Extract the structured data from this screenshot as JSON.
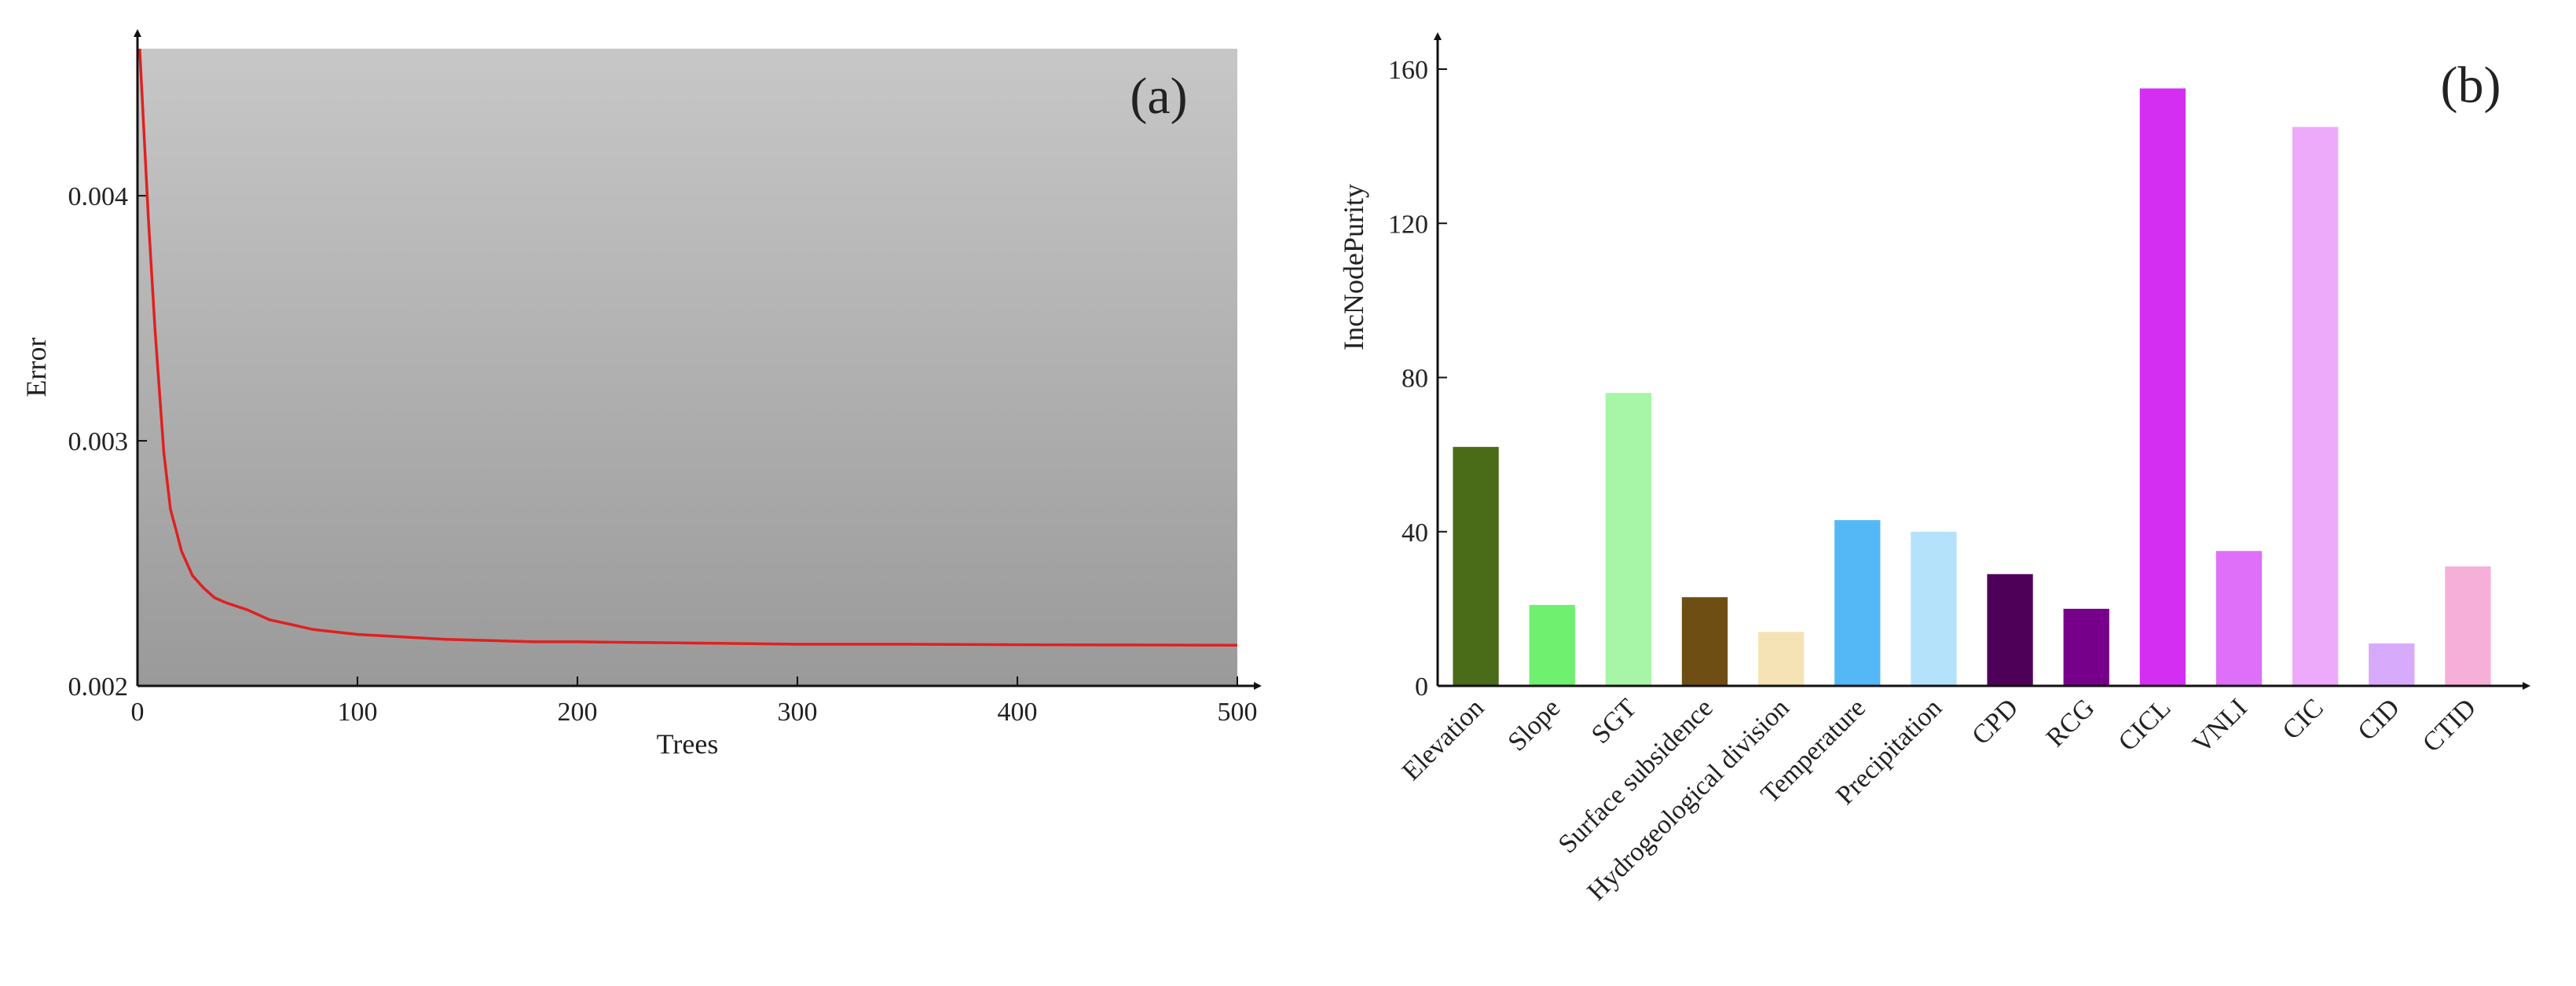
{
  "chart_data": [
    {
      "panel": "(a)",
      "type": "line",
      "xlabel": "Trees",
      "ylabel": "Error",
      "xlim": [
        0,
        500
      ],
      "ylim": [
        0.002,
        0.0046
      ],
      "xticks": [
        0,
        100,
        200,
        300,
        400,
        500
      ],
      "xtick_labels": [
        "0",
        "100",
        "200",
        "300",
        "400",
        "500"
      ],
      "yticks": [
        0.002,
        0.003,
        0.004
      ],
      "ytick_labels": [
        "0.002",
        "0.003",
        "0.004"
      ],
      "grid": false,
      "background": "gray gradient",
      "line_color": "#e02020",
      "series": [
        {
          "x": [
            1,
            3,
            5,
            8,
            10,
            12,
            15,
            18,
            20,
            25,
            30,
            35,
            40,
            50,
            60,
            70,
            80,
            90,
            100,
            120,
            140,
            160,
            180,
            200,
            250,
            300,
            350,
            400,
            450,
            500
          ],
          "y": [
            0.0046,
            0.00425,
            0.0039,
            0.00345,
            0.0032,
            0.00295,
            0.00272,
            0.00262,
            0.00255,
            0.00245,
            0.0024,
            0.00236,
            0.00234,
            0.00231,
            0.00227,
            0.00225,
            0.00223,
            0.00222,
            0.00221,
            0.0022,
            0.00219,
            0.002185,
            0.00218,
            0.00218,
            0.002175,
            0.00217,
            0.00217,
            0.002168,
            0.002167,
            0.002166
          ]
        }
      ]
    },
    {
      "panel": "(b)",
      "type": "bar",
      "ylabel": "IncNodePurity",
      "xlabel": "",
      "ylim": [
        0,
        160
      ],
      "yticks": [
        0,
        40,
        80,
        120,
        160
      ],
      "ytick_labels": [
        "0",
        "40",
        "80",
        "120",
        "160"
      ],
      "grid": false,
      "categories": [
        "Elevation",
        "Slope",
        "SGT",
        "Surface subsidence",
        "Hydrogeological division",
        "Temperature",
        "Precipitation",
        "CPD",
        "RCG",
        "CICL",
        "VNLI",
        "CIC",
        "CID",
        "CTID"
      ],
      "values": [
        62,
        21,
        76,
        23,
        14,
        43,
        40,
        29,
        20,
        155,
        35,
        145,
        11,
        31
      ],
      "colors": [
        "#4a6b17",
        "#6ff06f",
        "#a7f5a7",
        "#6e4e12",
        "#f5e2b5",
        "#54b8f7",
        "#b3e2fa",
        "#4e0058",
        "#76008a",
        "#d42ef3",
        "#df6ff8",
        "#eda9fa",
        "#d8aafb",
        "#f6afd8"
      ]
    }
  ]
}
